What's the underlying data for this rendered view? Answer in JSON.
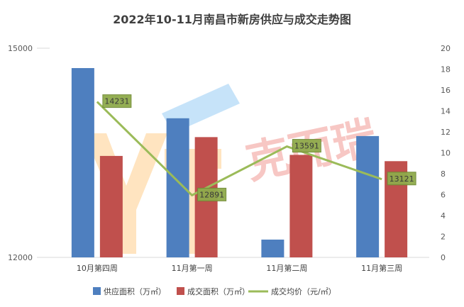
{
  "chart_data": {
    "type": "bar",
    "title": "2022年10-11月南昌市新房供应与成交走势图",
    "categories": [
      "10月第四周",
      "11月第一周",
      "11月第二周",
      "11月第三周"
    ],
    "left_axis": {
      "min": 12000,
      "max": 15000,
      "ticks": [
        "12000",
        "15000"
      ]
    },
    "right_axis": {
      "min": 0,
      "max": 20,
      "step": 2,
      "ticks": [
        "0",
        "2",
        "4",
        "6",
        "8",
        "10",
        "12",
        "14",
        "16",
        "18",
        "20"
      ]
    },
    "series": [
      {
        "name": "供应面积（万㎡）",
        "type": "bar",
        "axis": "right",
        "color": "#4e7fbf",
        "values": [
          18.1,
          13.3,
          1.7,
          11.6
        ]
      },
      {
        "name": "成交面积（万㎡）",
        "type": "bar",
        "axis": "right",
        "color": "#c0504d",
        "values": [
          9.7,
          11.5,
          9.8,
          9.2
        ]
      },
      {
        "name": "成交均价（元/㎡）",
        "type": "line",
        "axis": "left",
        "color": "#9bbb59",
        "values": [
          14231,
          12891,
          13591,
          13121
        ],
        "labels": [
          "14231",
          "12891",
          "13591",
          "13121"
        ]
      }
    ],
    "legend_position": "bottom",
    "grid": false
  },
  "watermark": {
    "text": "克而瑞",
    "latin": "YT"
  }
}
